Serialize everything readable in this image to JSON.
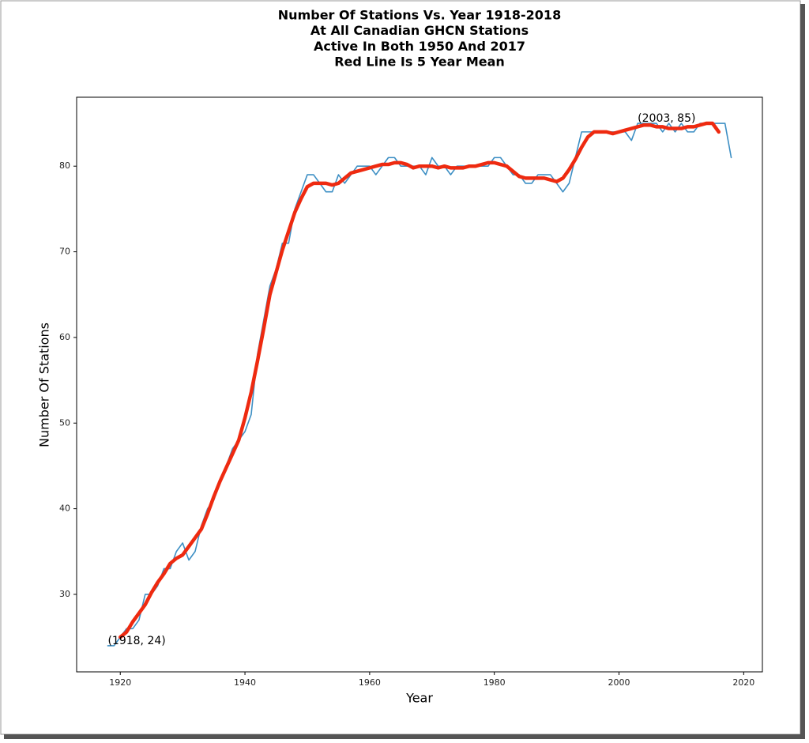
{
  "chart_data": {
    "type": "line",
    "title": [
      "Number Of Stations Vs. Year 1918-2018",
      "At All Canadian GHCN Stations",
      "Active In Both 1950 And 2017",
      "Red Line Is 5 Year Mean"
    ],
    "x_label": "Year",
    "y_label": "Number Of Stations",
    "x": [
      1918,
      1919,
      1920,
      1921,
      1922,
      1923,
      1924,
      1925,
      1926,
      1927,
      1928,
      1929,
      1930,
      1931,
      1932,
      1933,
      1934,
      1935,
      1936,
      1937,
      1938,
      1939,
      1940,
      1941,
      1942,
      1943,
      1944,
      1945,
      1946,
      1947,
      1948,
      1949,
      1950,
      1951,
      1952,
      1953,
      1954,
      1955,
      1956,
      1957,
      1958,
      1959,
      1960,
      1961,
      1962,
      1963,
      1964,
      1965,
      1966,
      1967,
      1968,
      1969,
      1970,
      1971,
      1972,
      1973,
      1974,
      1975,
      1976,
      1977,
      1978,
      1979,
      1980,
      1981,
      1982,
      1983,
      1984,
      1985,
      1986,
      1987,
      1988,
      1989,
      1990,
      1991,
      1992,
      1993,
      1994,
      1995,
      1996,
      1997,
      1998,
      1999,
      2000,
      2001,
      2002,
      2003,
      2004,
      2005,
      2006,
      2007,
      2008,
      2009,
      2010,
      2011,
      2012,
      2013,
      2014,
      2015,
      2016,
      2017,
      2018
    ],
    "series": [
      {
        "color": "#3d8fc4",
        "width": 1.6,
        "values": [
          24,
          24,
          25,
          26,
          26,
          27,
          30,
          30,
          31,
          33,
          33,
          35,
          36,
          34,
          35,
          38,
          40,
          41,
          43,
          45,
          47,
          48,
          49,
          51,
          58,
          62,
          66,
          68,
          71,
          71,
          75,
          77,
          79,
          79,
          78,
          77,
          77,
          79,
          78,
          79,
          80,
          80,
          80,
          79,
          80,
          81,
          81,
          80,
          80,
          80,
          80,
          79,
          81,
          80,
          80,
          79,
          80,
          80,
          80,
          80,
          80,
          80,
          81,
          81,
          80,
          79,
          79,
          78,
          78,
          79,
          79,
          79,
          78,
          77,
          78,
          81,
          84,
          84,
          84,
          84,
          84,
          84,
          84,
          84,
          83,
          85,
          85,
          85,
          85,
          84,
          85,
          84,
          85,
          84,
          84,
          85,
          85,
          85,
          85,
          85,
          81
        ]
      },
      {
        "color": "#ee2a10",
        "width": 4.5,
        "values": [
          null,
          null,
          25.0,
          25.6,
          26.8,
          27.8,
          28.8,
          30.2,
          31.4,
          32.4,
          33.6,
          34.2,
          34.6,
          35.6,
          36.6,
          37.6,
          39.4,
          41.4,
          43.2,
          44.8,
          46.4,
          48.0,
          50.6,
          53.6,
          57.2,
          61.0,
          65.0,
          67.6,
          70.2,
          72.4,
          74.6,
          76.2,
          77.6,
          78.0,
          78.0,
          78.0,
          77.8,
          78.0,
          78.6,
          79.2,
          79.4,
          79.6,
          79.8,
          80.0,
          80.2,
          80.2,
          80.4,
          80.4,
          80.2,
          79.8,
          80.0,
          80.0,
          80.0,
          79.8,
          80.0,
          79.8,
          79.8,
          79.8,
          80.0,
          80.0,
          80.2,
          80.4,
          80.4,
          80.2,
          80.0,
          79.4,
          78.8,
          78.6,
          78.6,
          78.6,
          78.6,
          78.4,
          78.2,
          78.6,
          79.6,
          80.8,
          82.2,
          83.4,
          84.0,
          84.0,
          84.0,
          83.8,
          84.0,
          84.2,
          84.4,
          84.6,
          84.8,
          84.8,
          84.6,
          84.6,
          84.4,
          84.4,
          84.4,
          84.6,
          84.6,
          84.8,
          85.0,
          85.0,
          84.0,
          null,
          null
        ]
      }
    ],
    "annotations": [
      {
        "text": "(1918, 24)",
        "x": 1918,
        "y": 24
      },
      {
        "text": "(2003, 85)",
        "x": 2003,
        "y": 85
      }
    ],
    "xlim": [
      1913,
      2023
    ],
    "ylim": [
      20.95,
      88.05
    ],
    "xticks": [
      1920,
      1940,
      1960,
      1980,
      2000,
      2020
    ],
    "yticks": [
      30,
      40,
      50,
      60,
      70,
      80
    ],
    "grid": false
  }
}
